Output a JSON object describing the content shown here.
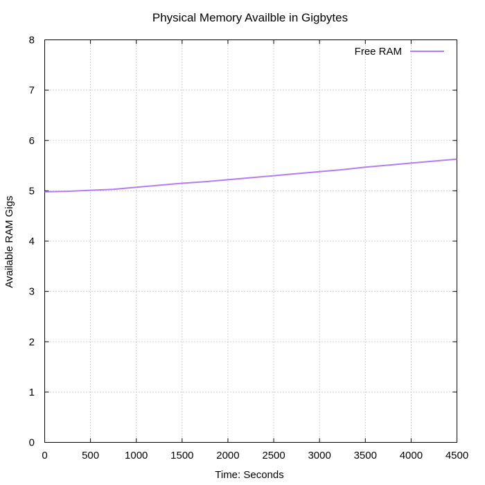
{
  "chart_data": {
    "type": "line",
    "title": "Physical Memory Availble in Gigbytes",
    "xlabel": "Time: Seconds",
    "ylabel": "Available RAM Gigs",
    "xlim": [
      0,
      4500
    ],
    "ylim": [
      0,
      8
    ],
    "xticks": [
      "0",
      "500",
      "1000",
      "1500",
      "2000",
      "2500",
      "3000",
      "3500",
      "4000",
      "4500"
    ],
    "yticks": [
      "0",
      "1",
      "2",
      "3",
      "4",
      "5",
      "6",
      "7",
      "8"
    ],
    "grid": true,
    "legend_position": "top-right",
    "series": [
      {
        "name": "Free RAM",
        "color": "#b57bf5",
        "x": [
          0,
          250,
          500,
          750,
          1000,
          1250,
          1500,
          1750,
          2000,
          2250,
          2500,
          2750,
          3000,
          3250,
          3500,
          3750,
          4000,
          4250,
          4500
        ],
        "y": [
          4.98,
          4.99,
          5.01,
          5.03,
          5.07,
          5.11,
          5.15,
          5.18,
          5.22,
          5.26,
          5.3,
          5.34,
          5.38,
          5.42,
          5.47,
          5.51,
          5.55,
          5.59,
          5.63
        ]
      }
    ]
  }
}
